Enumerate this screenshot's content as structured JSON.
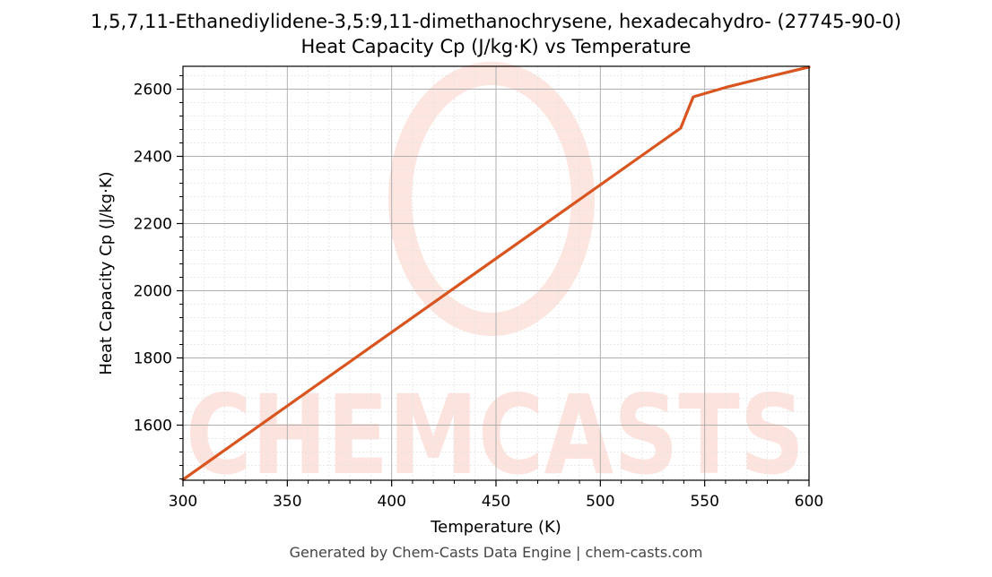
{
  "chart_data": {
    "type": "line",
    "title": "1,5,7,11-Ethanediylidene-3,5:9,11-dimethanochrysene, hexadecahydro- (27745-90-0)",
    "subtitle": "Heat Capacity Cp (J/kg·K) vs Temperature",
    "xlabel": "Temperature (K)",
    "ylabel": "Heat Capacity Cp (J/kg·K)",
    "xlim": [
      300,
      600
    ],
    "ylim": [
      1436,
      2668
    ],
    "xticks": [
      300,
      350,
      400,
      450,
      500,
      550,
      600
    ],
    "yticks": [
      1600,
      1800,
      2000,
      2200,
      2400,
      2600
    ],
    "grid": true,
    "line_color": "#d9541e",
    "series": [
      {
        "x": [
          300,
          538.5,
          544.5,
          560,
          580,
          600
        ],
        "y": [
          1438,
          2484,
          2577,
          2605,
          2636,
          2666
        ]
      }
    ]
  },
  "watermark": {
    "text": "CHEMCASTS",
    "color": "#fde0db"
  },
  "footer": "Generated by Chem-Casts Data Engine | chem-casts.com"
}
